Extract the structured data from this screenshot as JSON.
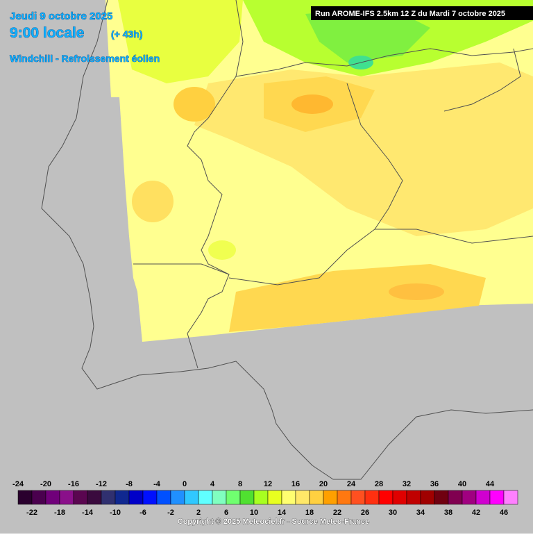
{
  "header": {
    "date": "Jeudi 9 octobre 2025",
    "time": "9:00 locale",
    "lead": "(+ 43h)",
    "parameter": "Windchill - Refroissement éolien"
  },
  "run": "Run AROME-IFS 2.5km 12 Z du Mardi 7 octobre 2025",
  "legend": {
    "values": [
      -24,
      -22,
      -20,
      -18,
      -16,
      -14,
      -12,
      -10,
      -8,
      -6,
      -4,
      -2,
      0,
      2,
      4,
      6,
      8,
      10,
      12,
      14,
      16,
      18,
      20,
      22,
      24,
      26,
      28,
      30,
      32,
      34,
      36,
      38,
      40,
      42,
      44,
      46
    ],
    "colors": [
      "#2a002e",
      "#4a004e",
      "#70007a",
      "#8a108a",
      "#5a0650",
      "#3a0a3e",
      "#303070",
      "#102890",
      "#0000c8",
      "#0010ff",
      "#0050ff",
      "#2090ff",
      "#30c8ff",
      "#60ffff",
      "#80ffc0",
      "#70ff70",
      "#50e030",
      "#a8ff20",
      "#e8ff20",
      "#ffff70",
      "#ffe868",
      "#ffd040",
      "#ffa000",
      "#ff7810",
      "#ff5020",
      "#ff3010",
      "#ff0000",
      "#e00000",
      "#c00000",
      "#a00000",
      "#700010",
      "#800050",
      "#a00080",
      "#d000d0",
      "#ff00ff",
      "#ff80ff"
    ]
  },
  "copyright": "Copyright © 2025 Meteociel.fr - Source Meteo-France"
}
